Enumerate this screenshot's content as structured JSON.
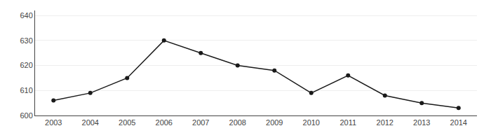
{
  "chart_data": {
    "type": "line",
    "x": [
      2003,
      2004,
      2005,
      2006,
      2007,
      2008,
      2009,
      2010,
      2011,
      2012,
      2013,
      2014
    ],
    "values": [
      606,
      609,
      615,
      630,
      625,
      620,
      618,
      609,
      616,
      608,
      605,
      603
    ],
    "color": "#1a1a1a",
    "marker": "circle",
    "line_style": "solid",
    "xlim": [
      2002.5,
      2014.5
    ],
    "xticks": [
      2003,
      2004,
      2005,
      2006,
      2007,
      2008,
      2009,
      2010,
      2011,
      2012,
      2013,
      2014
    ],
    "ylim": [
      600,
      642
    ],
    "yticks": [
      600,
      610,
      620,
      630,
      640
    ],
    "grid": true
  }
}
